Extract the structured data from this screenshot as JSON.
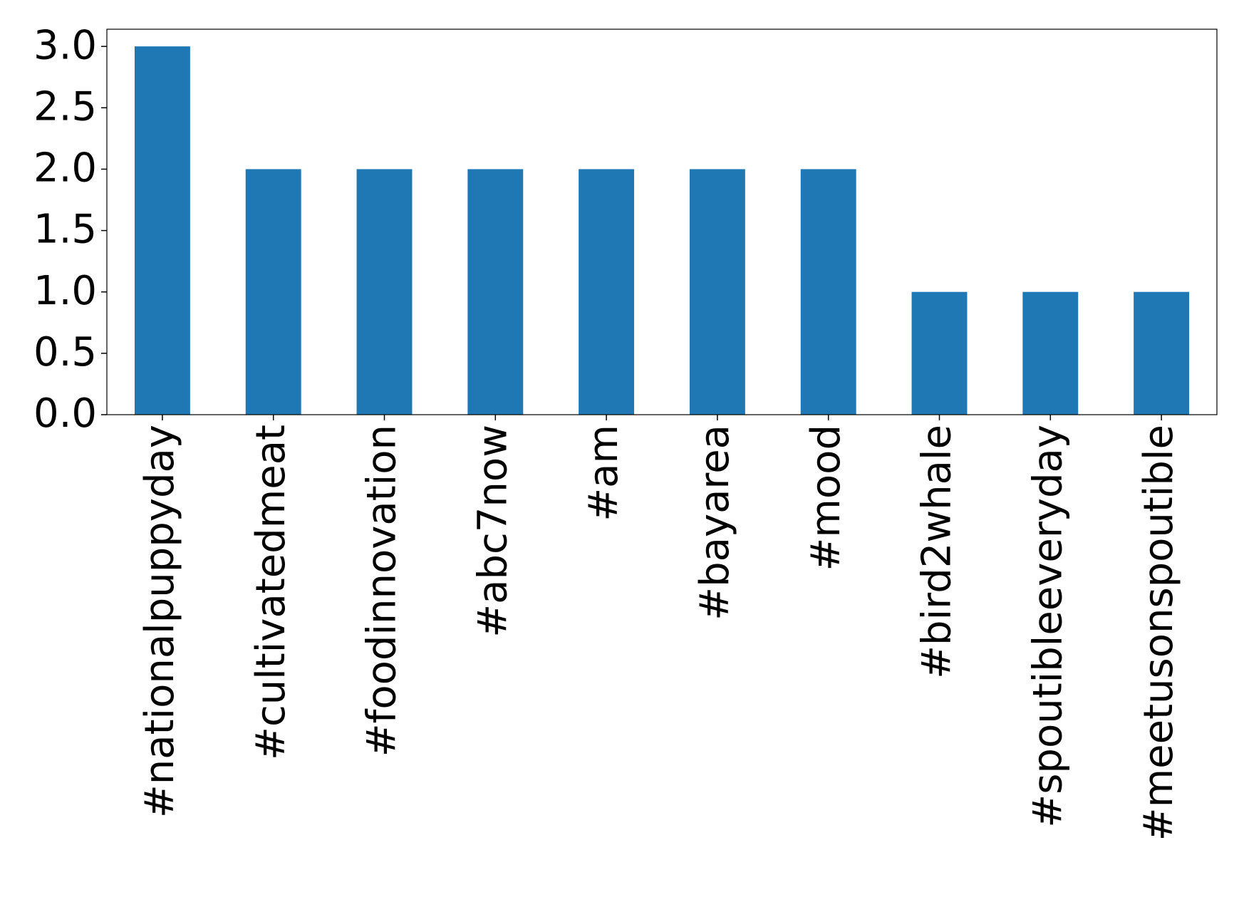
{
  "chart_data": {
    "type": "bar",
    "categories": [
      "#nationalpuppyday",
      "#cultivatedmeat",
      "#foodinnovation",
      "#abc7now",
      "#am",
      "#bayarea",
      "#mood",
      "#bird2whale",
      "#spoutibleeveryday",
      "#meetusonspoutible"
    ],
    "values": [
      3,
      2,
      2,
      2,
      2,
      2,
      2,
      1,
      1,
      1
    ],
    "color": "#1f77b4",
    "ylim": [
      0,
      3.14
    ],
    "yticks": [
      {
        "value": 0,
        "label": "0.0"
      },
      {
        "value": 0.5,
        "label": "0.5"
      },
      {
        "value": 1,
        "label": "1.0"
      },
      {
        "value": 1.5,
        "label": "1.5"
      },
      {
        "value": 2,
        "label": "2.0"
      },
      {
        "value": 2.5,
        "label": "2.5"
      },
      {
        "value": 3,
        "label": "3.0"
      }
    ],
    "grid": false
  }
}
